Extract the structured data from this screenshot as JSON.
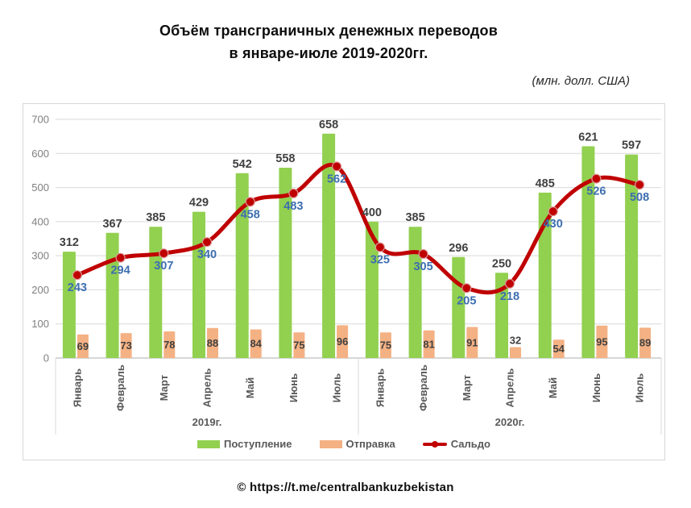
{
  "page": {
    "title_line1": "Объём трансграничных денежных переводов",
    "title_line2": "в январе-июле 2019-2020гг.",
    "units_label": "(млн. долл. США)",
    "footer": "© https://t.me/centralbankuzbekistan"
  },
  "chart_data": {
    "type": "bar",
    "subtype": "grouped bars with smoothed line overlay",
    "title": "Объём трансграничных денежных переводов в январе-июле 2019-2020гг.",
    "units": "млн. долл. США",
    "months": [
      "Январь",
      "Февраль",
      "Март",
      "Апрель",
      "Май",
      "Июнь",
      "Июль"
    ],
    "year_groups": [
      {
        "label": "2019г.",
        "span": 7
      },
      {
        "label": "2020г.",
        "span": 7
      }
    ],
    "y_axis": {
      "min": 0,
      "max": 700,
      "step": 100
    },
    "grid": true,
    "legend_position": "bottom",
    "series": [
      {
        "name": "Поступление",
        "kind": "bar",
        "color": "#92D050",
        "values": [
          312,
          367,
          385,
          429,
          542,
          558,
          658,
          400,
          385,
          296,
          250,
          485,
          621,
          597
        ]
      },
      {
        "name": "Отправка",
        "kind": "bar",
        "color": "#F4B183",
        "values": [
          69,
          73,
          78,
          88,
          84,
          75,
          96,
          75,
          81,
          91,
          32,
          54,
          95,
          89
        ]
      },
      {
        "name": "Сальдо",
        "kind": "line",
        "color": "#C00000",
        "values": [
          243,
          294,
          307,
          340,
          458,
          483,
          562,
          325,
          305,
          205,
          218,
          430,
          526,
          508
        ]
      }
    ],
    "colors": {
      "value_label": "#404040",
      "saldo_label": "#3C6EB0",
      "axis_text": "#7F7F7F",
      "category_text": "#595959",
      "gridline": "#D9D9D9",
      "axis_line": "#BFBFBF",
      "marker_ring": "#DD9B9B"
    }
  }
}
